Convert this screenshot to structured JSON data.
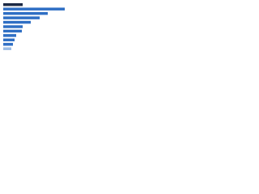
{
  "chart_data": {
    "type": "bar",
    "orientation": "horizontal",
    "categories": [
      null,
      null,
      null,
      null,
      null,
      null,
      null,
      null,
      null,
      null,
      null
    ],
    "values": [
      24,
      76,
      55,
      45,
      34,
      24,
      23,
      16,
      14,
      12,
      10
    ],
    "colors": [
      "#1d2a45",
      "#2f6fc4",
      "#2f6fc4",
      "#2f6fc4",
      "#2f6fc4",
      "#2f6fc4",
      "#2f6fc4",
      "#2f6fc4",
      "#2f6fc4",
      "#2f6fc4",
      "#9dbde6"
    ]
  }
}
